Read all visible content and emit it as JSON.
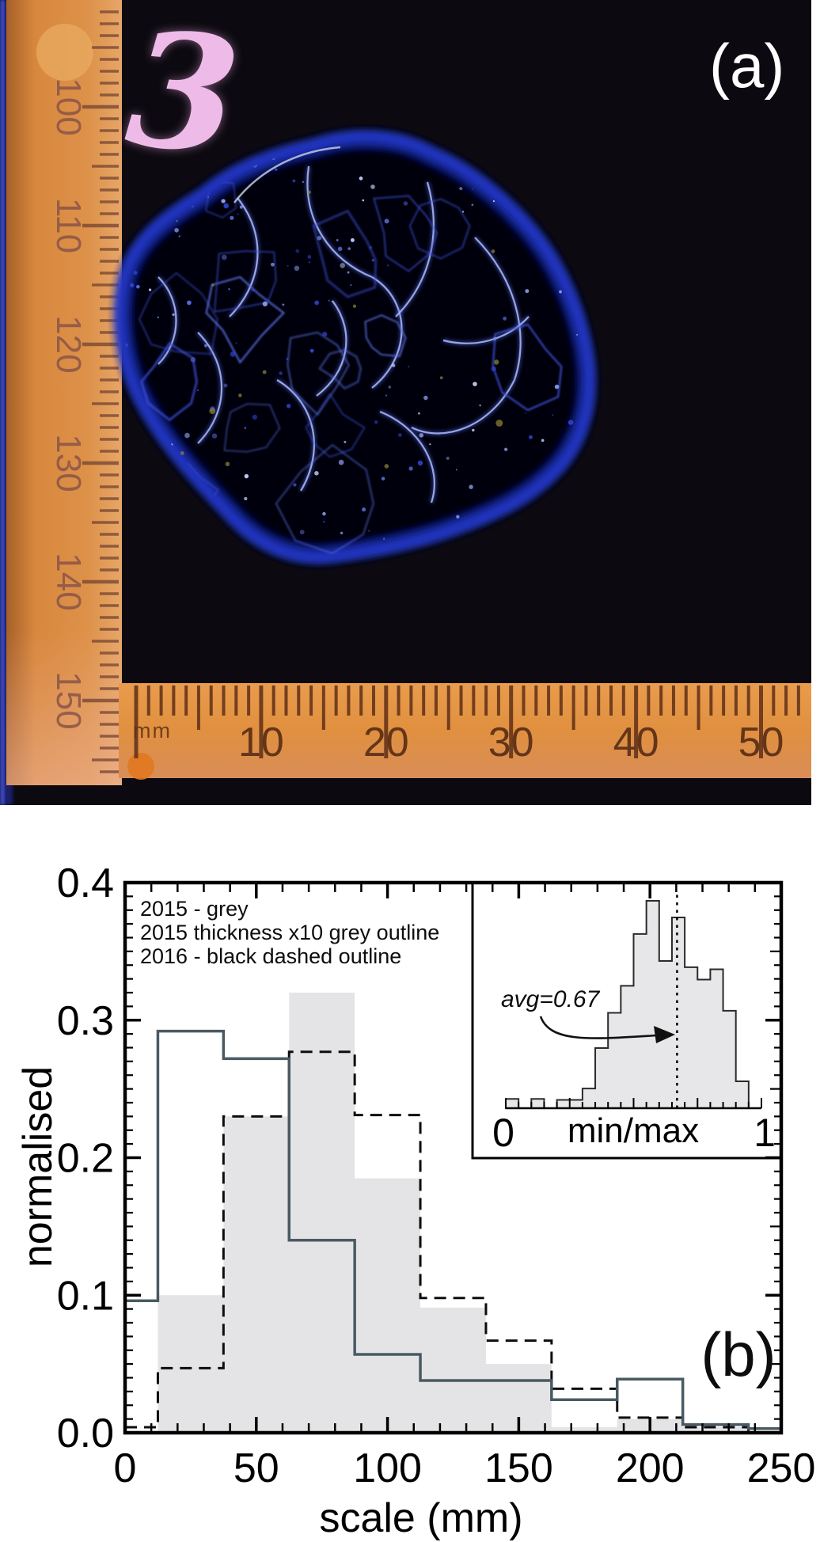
{
  "figure": {
    "panel_a": {
      "label": "(a)",
      "specimen_number": "3",
      "left_ruler_numbers": [
        "100",
        "110",
        "120",
        "130",
        "140",
        "150"
      ],
      "bottom_ruler_numbers": [
        "10",
        "20",
        "30",
        "40",
        "50"
      ],
      "bottom_ruler_unit": "mm"
    },
    "panel_b": {
      "label": "(b)"
    }
  },
  "chart_data": {
    "type": "bar",
    "subtype": "step-histogram",
    "title": "",
    "xlabel": "scale (mm)",
    "ylabel": "normalised",
    "xlim": [
      0,
      250
    ],
    "ylim": [
      0,
      0.4
    ],
    "x_ticks": [
      0,
      50,
      100,
      150,
      200,
      250
    ],
    "y_ticks": [
      0,
      0.1,
      0.2,
      0.3,
      0.4
    ],
    "y_tick_labels": [
      "0.0",
      "0.1",
      "0.2",
      "0.3",
      "0.4"
    ],
    "grid": false,
    "legend_position": "top-left",
    "legend": [
      "2015 - grey",
      "2015 thickness x10 grey outline",
      "2016 - black dashed outline"
    ],
    "bin_edges_mm": [
      0,
      12.5,
      37.5,
      62.5,
      87.5,
      112.5,
      137.5,
      162.5,
      187.5,
      212.5,
      237.5,
      250
    ],
    "series": [
      {
        "name": "2015 - grey",
        "style": "filled-grey",
        "values": [
          0,
          0.1,
          0.23,
          0.32,
          0.185,
          0.091,
          0.05,
          0.004,
          0.01,
          0.004,
          0
        ]
      },
      {
        "name": "2015 thickness x10 grey outline",
        "style": "solid-grey-outline",
        "values": [
          0.096,
          0.292,
          0.272,
          0.14,
          0.057,
          0.038,
          0.038,
          0.024,
          0.039,
          0.006,
          0.003
        ]
      },
      {
        "name": "2016 - black dashed outline",
        "style": "black-dashed-outline",
        "values": [
          0.004,
          0.047,
          0.23,
          0.277,
          0.231,
          0.098,
          0.067,
          0.032,
          0.011,
          0.004,
          0
        ]
      }
    ],
    "inset": {
      "type": "bar",
      "subtype": "histogram",
      "xlabel": "min/max",
      "xlim": [
        0,
        1
      ],
      "x_tick_labels": [
        "0",
        "1"
      ],
      "bin_width": 0.05,
      "values_relative": [
        0.045,
        0,
        0.045,
        0,
        0.04,
        0.04,
        0.095,
        0.29,
        0.46,
        0.59,
        0.84,
        1.0,
        0.71,
        0.92,
        0.68,
        0.62,
        0.67,
        0.47,
        0.13,
        0
      ],
      "avg_line_x": 0.67,
      "annotation": "avg=0.67"
    }
  },
  "colors": {
    "grey_fill": "#e4e4e6",
    "solid_outline": "#4a5a62",
    "dashed_outline": "#0d0d0d",
    "inset_fill": "#e7e7e9",
    "inset_outline": "#2b2b2b",
    "photo_background": "#0c0a10",
    "ruler_orange": "#d8893f",
    "glow_blue": "#4e5de8",
    "specimen_pink": "#eebbe8"
  }
}
